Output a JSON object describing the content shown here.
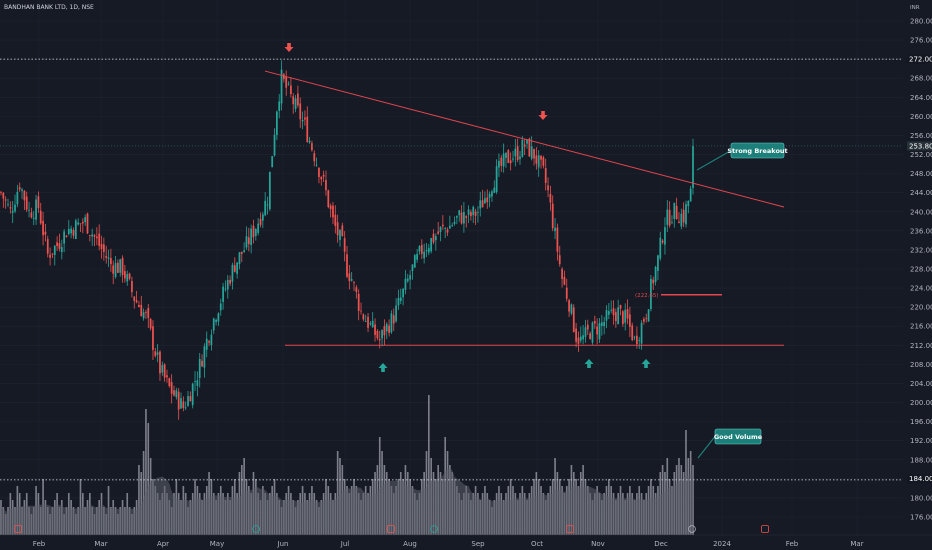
{
  "header": {
    "title": "BANDHAN BANK LTD, 1D, NSE",
    "currency": "INR"
  },
  "chart_data": {
    "type": "candlestick",
    "title": "BANDHAN BANK LTD, 1D, NSE",
    "y_ticks": [
      176,
      180,
      184,
      188,
      192,
      196,
      200,
      204,
      208,
      212,
      216,
      220,
      224,
      228,
      232,
      236,
      240,
      244,
      248,
      252,
      256,
      260,
      264,
      268,
      272,
      276,
      280
    ],
    "ylim": [
      174,
      282
    ],
    "x_labels": [
      "Feb",
      "Mar",
      "Apr",
      "May",
      "Jun",
      "Jul",
      "Aug",
      "Sep",
      "Oct",
      "Nov",
      "Dec",
      "2024",
      "Feb",
      "Mar"
    ],
    "last_price": "253.80",
    "reference_line": {
      "value": 272.0,
      "label": "272.00"
    },
    "trendline": {
      "from": [
        "late May",
        269.5
      ],
      "to": [
        "Mar",
        241
      ]
    },
    "support_line": {
      "value": 212.0
    },
    "price_path": [
      [
        0,
        244
      ],
      [
        4,
        240
      ],
      [
        8,
        246
      ],
      [
        12,
        240
      ],
      [
        16,
        241
      ],
      [
        20,
        231
      ],
      [
        24,
        233
      ],
      [
        28,
        236
      ],
      [
        32,
        237
      ],
      [
        36,
        238
      ],
      [
        42,
        233
      ],
      [
        47,
        229
      ],
      [
        52,
        228
      ],
      [
        57,
        222
      ],
      [
        62,
        218
      ],
      [
        68,
        207
      ],
      [
        72,
        203
      ],
      [
        78,
        199
      ],
      [
        80,
        201
      ],
      [
        84,
        206
      ],
      [
        88,
        213
      ],
      [
        92,
        219
      ],
      [
        96,
        224
      ],
      [
        100,
        229
      ],
      [
        105,
        233
      ],
      [
        110,
        238
      ],
      [
        114,
        243
      ],
      [
        118,
        262
      ],
      [
        120,
        268
      ],
      [
        122,
        266
      ],
      [
        126,
        262
      ],
      [
        130,
        258
      ],
      [
        134,
        252
      ],
      [
        138,
        246
      ],
      [
        142,
        238
      ],
      [
        146,
        233
      ],
      [
        148,
        228
      ],
      [
        150,
        226
      ],
      [
        154,
        219
      ],
      [
        158,
        216
      ],
      [
        162,
        213
      ],
      [
        164,
        215
      ],
      [
        168,
        218
      ],
      [
        172,
        223
      ],
      [
        176,
        228
      ],
      [
        180,
        232
      ],
      [
        184,
        234
      ],
      [
        188,
        236
      ],
      [
        192,
        237
      ],
      [
        196,
        239
      ],
      [
        200,
        239
      ],
      [
        204,
        240
      ],
      [
        208,
        244
      ],
      [
        212,
        248
      ],
      [
        216,
        251
      ],
      [
        220,
        252
      ],
      [
        224,
        254
      ],
      [
        228,
        252
      ],
      [
        232,
        248
      ],
      [
        234,
        244
      ],
      [
        236,
        238
      ],
      [
        240,
        226
      ],
      [
        243,
        221
      ],
      [
        246,
        214
      ],
      [
        248,
        213
      ],
      [
        252,
        215
      ],
      [
        256,
        216
      ],
      [
        260,
        218
      ],
      [
        264,
        219
      ],
      [
        268,
        217
      ],
      [
        271,
        213
      ],
      [
        273,
        215
      ],
      [
        276,
        219
      ],
      [
        278,
        224
      ],
      [
        281,
        230
      ],
      [
        284,
        238
      ],
      [
        288,
        240
      ],
      [
        292,
        239
      ],
      [
        295,
        244
      ],
      [
        296,
        253.8
      ]
    ],
    "volume": {
      "values": [
        0.25,
        0.2,
        0.15,
        0.2,
        0.3,
        0.25,
        0.2,
        0.35,
        0.3,
        0.2,
        0.25,
        0.3,
        0.2,
        0.15,
        0.2,
        0.35,
        0.3,
        0.2,
        0.4,
        0.25,
        0.2,
        0.15,
        0.2,
        0.25,
        0.3,
        0.2,
        0.25,
        0.15,
        0.2,
        0.3,
        0.25,
        0.2,
        0.15,
        0.2,
        0.4,
        0.3,
        0.2,
        0.25,
        0.3,
        0.2,
        0.15,
        0.2,
        0.25,
        0.3,
        0.2,
        0.15,
        0.35,
        0.2,
        0.25,
        0.2,
        0.15,
        0.2,
        0.25,
        0.2,
        0.3,
        0.2,
        0.15,
        0.2,
        0.25,
        0.5,
        0.45,
        0.6,
        0.9,
        0.8,
        0.55,
        0.4,
        0.35,
        0.3,
        0.25,
        0.3,
        0.35,
        0.3,
        0.25,
        0.2,
        0.3,
        0.4,
        0.3,
        0.25,
        0.35,
        0.3,
        0.2,
        0.25,
        0.3,
        0.4,
        0.35,
        0.3,
        0.25,
        0.3,
        0.35,
        0.45,
        0.4,
        0.3,
        0.25,
        0.3,
        0.35,
        0.3,
        0.25,
        0.3,
        0.25,
        0.35,
        0.4,
        0.3,
        0.45,
        0.5,
        0.55,
        0.4,
        0.35,
        0.3,
        0.45,
        0.4,
        0.3,
        0.25,
        0.35,
        0.3,
        0.25,
        0.3,
        0.35,
        0.4,
        0.3,
        0.25,
        0.2,
        0.25,
        0.3,
        0.35,
        0.3,
        0.25,
        0.2,
        0.25,
        0.3,
        0.35,
        0.3,
        0.25,
        0.3,
        0.35,
        0.3,
        0.25,
        0.2,
        0.25,
        0.3,
        0.4,
        0.35,
        0.3,
        0.25,
        0.3,
        0.6,
        0.55,
        0.5,
        0.4,
        0.35,
        0.3,
        0.35,
        0.4,
        0.35,
        0.3,
        0.25,
        0.3,
        0.35,
        0.3,
        0.35,
        0.4,
        0.45,
        0.5,
        0.7,
        0.6,
        0.5,
        0.45,
        0.4,
        0.35,
        0.3,
        0.35,
        0.4,
        0.45,
        0.4,
        0.5,
        0.45,
        0.4,
        0.35,
        0.3,
        0.25,
        0.3,
        0.4,
        0.45,
        0.6,
        1.0,
        0.55,
        0.45,
        0.4,
        0.5,
        0.45,
        0.4,
        0.7,
        0.6,
        0.5,
        0.45,
        0.4,
        0.35,
        0.3,
        0.25,
        0.3,
        0.35,
        0.3,
        0.25,
        0.3,
        0.35,
        0.3,
        0.25,
        0.3,
        0.35,
        0.3,
        0.25,
        0.2,
        0.25,
        0.3,
        0.35,
        0.3,
        0.25,
        0.3,
        0.35,
        0.4,
        0.35,
        0.3,
        0.25,
        0.3,
        0.35,
        0.3,
        0.25,
        0.3,
        0.35,
        0.4,
        0.45,
        0.4,
        0.35,
        0.3,
        0.25,
        0.3,
        0.35,
        0.4,
        0.55,
        0.45,
        0.4,
        0.35,
        0.3,
        0.35,
        0.4,
        0.5,
        0.45,
        0.4,
        0.35,
        0.45,
        0.5,
        0.4,
        0.35,
        0.3,
        0.25,
        0.3,
        0.35,
        0.3,
        0.25,
        0.3,
        0.35,
        0.4,
        0.35,
        0.3,
        0.25,
        0.3,
        0.35,
        0.3,
        0.25,
        0.3,
        0.35,
        0.3,
        0.25,
        0.3,
        0.35,
        0.3,
        0.25,
        0.3,
        0.35,
        0.4,
        0.35,
        0.3,
        0.35,
        0.45,
        0.5,
        0.45,
        0.55,
        0.4,
        0.35,
        0.45,
        0.5,
        0.55,
        0.5,
        0.45,
        0.75,
        0.55,
        0.6,
        0.5,
        0.55,
        0.45,
        0.5,
        0.4,
        0.45,
        0.5,
        0.55,
        0.6,
        0.7,
        0.5,
        0.55,
        0.6,
        0.75,
        0.9
      ],
      "reference_line_label": "184.00"
    },
    "annotations": [
      {
        "text": "Strong Breakout"
      },
      {
        "text": "Good Volume"
      },
      {
        "text": "(222.65)"
      }
    ],
    "markers": [
      {
        "type": "down-arrow",
        "at": "late May peak"
      },
      {
        "type": "down-arrow",
        "at": "Oct peak"
      },
      {
        "type": "up-arrow",
        "at": "Jul low"
      },
      {
        "type": "up-arrow",
        "at": "Nov low"
      },
      {
        "type": "up-arrow",
        "at": "Dec low"
      }
    ],
    "colors": {
      "background": "#161a25",
      "up": "#26a69a",
      "down": "#ef5350",
      "volume": "#8e929b",
      "volume_avg": "#5d606b",
      "trendline": "#e5464f",
      "annotation_fill": "#1d7f7a",
      "text": "#b2b5be",
      "grid": "#1f2430",
      "price_label_bg": "#263238"
    }
  }
}
